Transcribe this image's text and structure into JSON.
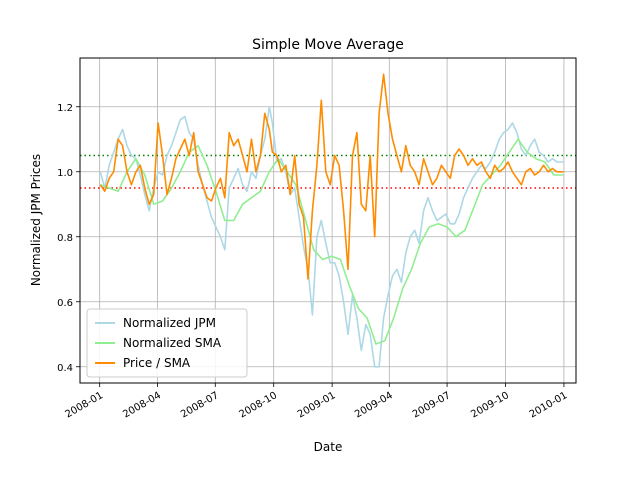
{
  "chart_data": {
    "type": "line",
    "title": "Simple Move Average",
    "xlabel": "Date",
    "ylabel": "Normalized JPM Prices",
    "xlim": [
      "2007-12-01",
      "2010-01-20"
    ],
    "ylim": [
      0.35,
      1.35
    ],
    "grid": true,
    "legend_position": "lower-left",
    "x_ticks": [
      {
        "date": "2008-01-01",
        "label": "2008-01"
      },
      {
        "date": "2008-04-01",
        "label": "2008-04"
      },
      {
        "date": "2008-07-01",
        "label": "2008-07"
      },
      {
        "date": "2008-10-01",
        "label": "2008-10"
      },
      {
        "date": "2009-01-01",
        "label": "2009-01"
      },
      {
        "date": "2009-04-01",
        "label": "2009-04"
      },
      {
        "date": "2009-07-01",
        "label": "2009-07"
      },
      {
        "date": "2009-10-01",
        "label": "2009-10"
      },
      {
        "date": "2010-01-01",
        "label": "2010-01"
      }
    ],
    "y_ticks": [
      {
        "value": 0.4,
        "label": "0.4"
      },
      {
        "value": 0.6,
        "label": "0.6"
      },
      {
        "value": 0.8,
        "label": "0.8"
      },
      {
        "value": 1.0,
        "label": "1.0"
      },
      {
        "value": 1.2,
        "label": "1.2"
      }
    ],
    "threshold_lines": [
      {
        "value": 1.05,
        "color": "#008000",
        "style": "dotted"
      },
      {
        "value": 0.95,
        "color": "#ff0000",
        "style": "dotted"
      }
    ],
    "series": [
      {
        "name": "Normalized JPM",
        "color": "#add8e6",
        "points": [
          [
            "2008-01-02",
            1.0
          ],
          [
            "2008-01-09",
            0.95
          ],
          [
            "2008-01-16",
            1.02
          ],
          [
            "2008-01-23",
            1.06
          ],
          [
            "2008-01-30",
            1.1
          ],
          [
            "2008-02-06",
            1.13
          ],
          [
            "2008-02-13",
            1.08
          ],
          [
            "2008-02-20",
            1.05
          ],
          [
            "2008-02-27",
            1.04
          ],
          [
            "2008-03-05",
            0.99
          ],
          [
            "2008-03-12",
            0.93
          ],
          [
            "2008-03-19",
            0.88
          ],
          [
            "2008-03-26",
            0.95
          ],
          [
            "2008-04-02",
            1.0
          ],
          [
            "2008-04-09",
            0.99
          ],
          [
            "2008-04-16",
            1.05
          ],
          [
            "2008-04-23",
            1.08
          ],
          [
            "2008-04-30",
            1.12
          ],
          [
            "2008-05-07",
            1.16
          ],
          [
            "2008-05-14",
            1.17
          ],
          [
            "2008-05-21",
            1.12
          ],
          [
            "2008-05-28",
            1.1
          ],
          [
            "2008-06-04",
            1.02
          ],
          [
            "2008-06-11",
            0.96
          ],
          [
            "2008-06-18",
            0.91
          ],
          [
            "2008-06-25",
            0.86
          ],
          [
            "2008-07-02",
            0.83
          ],
          [
            "2008-07-09",
            0.8
          ],
          [
            "2008-07-16",
            0.76
          ],
          [
            "2008-07-23",
            0.95
          ],
          [
            "2008-07-30",
            0.98
          ],
          [
            "2008-08-06",
            1.01
          ],
          [
            "2008-08-13",
            0.96
          ],
          [
            "2008-08-20",
            0.94
          ],
          [
            "2008-08-27",
            1.0
          ],
          [
            "2008-09-03",
            0.98
          ],
          [
            "2008-09-10",
            1.05
          ],
          [
            "2008-09-17",
            1.1
          ],
          [
            "2008-09-24",
            1.2
          ],
          [
            "2008-09-29",
            1.15
          ],
          [
            "2008-10-06",
            1.03
          ],
          [
            "2008-10-13",
            1.04
          ],
          [
            "2008-10-20",
            1.0
          ],
          [
            "2008-10-27",
            0.93
          ],
          [
            "2008-11-03",
            0.95
          ],
          [
            "2008-11-10",
            0.86
          ],
          [
            "2008-11-17",
            0.77
          ],
          [
            "2008-11-24",
            0.7
          ],
          [
            "2008-12-01",
            0.56
          ],
          [
            "2008-12-08",
            0.8
          ],
          [
            "2008-12-15",
            0.85
          ],
          [
            "2008-12-22",
            0.78
          ],
          [
            "2008-12-29",
            0.72
          ],
          [
            "2009-01-05",
            0.72
          ],
          [
            "2009-01-12",
            0.68
          ],
          [
            "2009-01-19",
            0.6
          ],
          [
            "2009-01-26",
            0.5
          ],
          [
            "2009-02-02",
            0.62
          ],
          [
            "2009-02-09",
            0.55
          ],
          [
            "2009-02-16",
            0.45
          ],
          [
            "2009-02-23",
            0.53
          ],
          [
            "2009-03-02",
            0.5
          ],
          [
            "2009-03-09",
            0.4
          ],
          [
            "2009-03-16",
            0.4
          ],
          [
            "2009-03-23",
            0.55
          ],
          [
            "2009-03-30",
            0.62
          ],
          [
            "2009-04-06",
            0.68
          ],
          [
            "2009-04-13",
            0.7
          ],
          [
            "2009-04-20",
            0.66
          ],
          [
            "2009-04-27",
            0.75
          ],
          [
            "2009-05-04",
            0.8
          ],
          [
            "2009-05-11",
            0.82
          ],
          [
            "2009-05-18",
            0.78
          ],
          [
            "2009-05-25",
            0.88
          ],
          [
            "2009-06-01",
            0.92
          ],
          [
            "2009-06-08",
            0.88
          ],
          [
            "2009-06-15",
            0.85
          ],
          [
            "2009-06-22",
            0.86
          ],
          [
            "2009-06-29",
            0.87
          ],
          [
            "2009-07-06",
            0.84
          ],
          [
            "2009-07-13",
            0.84
          ],
          [
            "2009-07-20",
            0.87
          ],
          [
            "2009-07-27",
            0.92
          ],
          [
            "2009-08-03",
            0.95
          ],
          [
            "2009-08-10",
            0.98
          ],
          [
            "2009-08-17",
            1.0
          ],
          [
            "2009-08-24",
            1.02
          ],
          [
            "2009-08-31",
            1.01
          ],
          [
            "2009-09-07",
            1.03
          ],
          [
            "2009-09-14",
            1.06
          ],
          [
            "2009-09-21",
            1.1
          ],
          [
            "2009-09-28",
            1.12
          ],
          [
            "2009-10-05",
            1.13
          ],
          [
            "2009-10-12",
            1.15
          ],
          [
            "2009-10-19",
            1.12
          ],
          [
            "2009-10-26",
            1.07
          ],
          [
            "2009-11-02",
            1.05
          ],
          [
            "2009-11-09",
            1.08
          ],
          [
            "2009-11-16",
            1.1
          ],
          [
            "2009-11-23",
            1.06
          ],
          [
            "2009-11-30",
            1.05
          ],
          [
            "2009-12-07",
            1.03
          ],
          [
            "2009-12-14",
            1.04
          ],
          [
            "2009-12-21",
            1.03
          ],
          [
            "2009-12-31",
            1.03
          ]
        ]
      },
      {
        "name": "Normalized SMA",
        "color": "#90ee90",
        "points": [
          [
            "2008-01-02",
            0.96
          ],
          [
            "2008-01-16",
            0.95
          ],
          [
            "2008-01-30",
            0.94
          ],
          [
            "2008-02-13",
            1.0
          ],
          [
            "2008-02-27",
            1.04
          ],
          [
            "2008-03-12",
            0.99
          ],
          [
            "2008-03-26",
            0.9
          ],
          [
            "2008-04-09",
            0.91
          ],
          [
            "2008-04-23",
            0.95
          ],
          [
            "2008-05-07",
            1.0
          ],
          [
            "2008-05-21",
            1.06
          ],
          [
            "2008-06-04",
            1.08
          ],
          [
            "2008-06-18",
            1.02
          ],
          [
            "2008-07-02",
            0.94
          ],
          [
            "2008-07-16",
            0.85
          ],
          [
            "2008-07-30",
            0.85
          ],
          [
            "2008-08-13",
            0.9
          ],
          [
            "2008-08-27",
            0.92
          ],
          [
            "2008-09-10",
            0.94
          ],
          [
            "2008-09-24",
            1.0
          ],
          [
            "2008-10-08",
            1.04
          ],
          [
            "2008-10-22",
            1.0
          ],
          [
            "2008-11-05",
            0.96
          ],
          [
            "2008-11-19",
            0.86
          ],
          [
            "2008-12-03",
            0.76
          ],
          [
            "2008-12-17",
            0.73
          ],
          [
            "2008-12-31",
            0.74
          ],
          [
            "2009-01-14",
            0.73
          ],
          [
            "2009-01-28",
            0.65
          ],
          [
            "2009-02-11",
            0.58
          ],
          [
            "2009-02-25",
            0.55
          ],
          [
            "2009-03-11",
            0.47
          ],
          [
            "2009-03-25",
            0.48
          ],
          [
            "2009-04-08",
            0.55
          ],
          [
            "2009-04-22",
            0.64
          ],
          [
            "2009-05-06",
            0.7
          ],
          [
            "2009-05-20",
            0.78
          ],
          [
            "2009-06-03",
            0.83
          ],
          [
            "2009-06-17",
            0.84
          ],
          [
            "2009-07-01",
            0.83
          ],
          [
            "2009-07-15",
            0.8
          ],
          [
            "2009-07-29",
            0.82
          ],
          [
            "2009-08-12",
            0.89
          ],
          [
            "2009-08-26",
            0.96
          ],
          [
            "2009-09-09",
            0.99
          ],
          [
            "2009-09-23",
            1.02
          ],
          [
            "2009-10-07",
            1.06
          ],
          [
            "2009-10-21",
            1.1
          ],
          [
            "2009-11-04",
            1.06
          ],
          [
            "2009-11-18",
            1.04
          ],
          [
            "2009-12-02",
            1.03
          ],
          [
            "2009-12-16",
            0.99
          ],
          [
            "2009-12-31",
            0.99
          ]
        ]
      },
      {
        "name": "Price / SMA",
        "color": "#ff8c00",
        "points": [
          [
            "2008-01-02",
            0.96
          ],
          [
            "2008-01-09",
            0.94
          ],
          [
            "2008-01-16",
            0.98
          ],
          [
            "2008-01-23",
            1.0
          ],
          [
            "2008-01-30",
            1.1
          ],
          [
            "2008-02-06",
            1.08
          ],
          [
            "2008-02-13",
            1.0
          ],
          [
            "2008-02-20",
            0.96
          ],
          [
            "2008-02-27",
            1.0
          ],
          [
            "2008-03-05",
            1.02
          ],
          [
            "2008-03-12",
            0.95
          ],
          [
            "2008-03-19",
            0.9
          ],
          [
            "2008-03-26",
            0.93
          ],
          [
            "2008-04-02",
            1.15
          ],
          [
            "2008-04-09",
            1.05
          ],
          [
            "2008-04-16",
            0.93
          ],
          [
            "2008-04-23",
            0.98
          ],
          [
            "2008-04-30",
            1.04
          ],
          [
            "2008-05-07",
            1.07
          ],
          [
            "2008-05-14",
            1.1
          ],
          [
            "2008-05-21",
            1.05
          ],
          [
            "2008-05-28",
            1.12
          ],
          [
            "2008-06-04",
            1.0
          ],
          [
            "2008-06-11",
            0.96
          ],
          [
            "2008-06-18",
            0.92
          ],
          [
            "2008-06-25",
            0.91
          ],
          [
            "2008-07-02",
            0.95
          ],
          [
            "2008-07-09",
            0.98
          ],
          [
            "2008-07-16",
            0.92
          ],
          [
            "2008-07-23",
            1.12
          ],
          [
            "2008-07-30",
            1.08
          ],
          [
            "2008-08-06",
            1.1
          ],
          [
            "2008-08-13",
            1.05
          ],
          [
            "2008-08-20",
            1.0
          ],
          [
            "2008-08-27",
            1.1
          ],
          [
            "2008-09-03",
            1.0
          ],
          [
            "2008-09-10",
            1.05
          ],
          [
            "2008-09-17",
            1.18
          ],
          [
            "2008-09-24",
            1.13
          ],
          [
            "2008-09-29",
            1.06
          ],
          [
            "2008-10-06",
            1.05
          ],
          [
            "2008-10-13",
            1.0
          ],
          [
            "2008-10-20",
            1.02
          ],
          [
            "2008-10-27",
            0.93
          ],
          [
            "2008-11-03",
            1.05
          ],
          [
            "2008-11-10",
            0.9
          ],
          [
            "2008-11-17",
            0.86
          ],
          [
            "2008-11-24",
            0.67
          ],
          [
            "2008-12-01",
            0.88
          ],
          [
            "2008-12-08",
            1.02
          ],
          [
            "2008-12-15",
            1.22
          ],
          [
            "2008-12-22",
            1.0
          ],
          [
            "2008-12-29",
            0.96
          ],
          [
            "2009-01-05",
            1.05
          ],
          [
            "2009-01-12",
            1.02
          ],
          [
            "2009-01-19",
            0.88
          ],
          [
            "2009-01-26",
            0.7
          ],
          [
            "2009-02-02",
            1.05
          ],
          [
            "2009-02-09",
            1.12
          ],
          [
            "2009-02-16",
            0.9
          ],
          [
            "2009-02-23",
            0.88
          ],
          [
            "2009-03-02",
            1.05
          ],
          [
            "2009-03-09",
            0.8
          ],
          [
            "2009-03-16",
            1.18
          ],
          [
            "2009-03-23",
            1.3
          ],
          [
            "2009-03-30",
            1.18
          ],
          [
            "2009-04-06",
            1.1
          ],
          [
            "2009-04-13",
            1.05
          ],
          [
            "2009-04-20",
            1.0
          ],
          [
            "2009-04-27",
            1.08
          ],
          [
            "2009-05-04",
            1.02
          ],
          [
            "2009-05-11",
            1.0
          ],
          [
            "2009-05-18",
            0.96
          ],
          [
            "2009-05-25",
            1.04
          ],
          [
            "2009-06-01",
            1.0
          ],
          [
            "2009-06-08",
            0.96
          ],
          [
            "2009-06-15",
            0.98
          ],
          [
            "2009-06-22",
            1.02
          ],
          [
            "2009-06-29",
            1.0
          ],
          [
            "2009-07-06",
            0.98
          ],
          [
            "2009-07-13",
            1.05
          ],
          [
            "2009-07-20",
            1.07
          ],
          [
            "2009-07-27",
            1.05
          ],
          [
            "2009-08-03",
            1.02
          ],
          [
            "2009-08-10",
            1.04
          ],
          [
            "2009-08-17",
            1.02
          ],
          [
            "2009-08-24",
            1.03
          ],
          [
            "2009-08-31",
            1.0
          ],
          [
            "2009-09-07",
            0.98
          ],
          [
            "2009-09-14",
            1.02
          ],
          [
            "2009-09-21",
            1.0
          ],
          [
            "2009-09-28",
            1.01
          ],
          [
            "2009-10-05",
            1.03
          ],
          [
            "2009-10-12",
            1.0
          ],
          [
            "2009-10-19",
            0.98
          ],
          [
            "2009-10-26",
            0.96
          ],
          [
            "2009-11-02",
            1.0
          ],
          [
            "2009-11-09",
            1.01
          ],
          [
            "2009-11-16",
            0.99
          ],
          [
            "2009-11-23",
            1.0
          ],
          [
            "2009-11-30",
            1.02
          ],
          [
            "2009-12-07",
            1.0
          ],
          [
            "2009-12-14",
            1.01
          ],
          [
            "2009-12-21",
            1.0
          ],
          [
            "2009-12-31",
            1.0
          ]
        ]
      }
    ]
  }
}
